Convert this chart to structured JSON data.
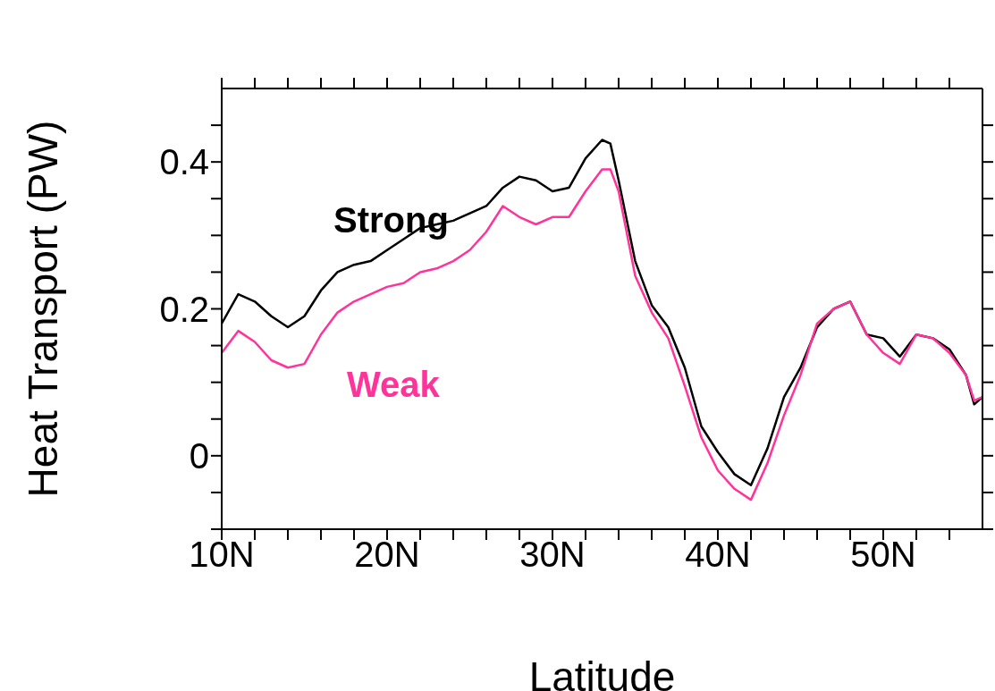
{
  "chart_data": {
    "type": "line",
    "xlabel": "Latitude",
    "ylabel": "Heat Transport (PW)",
    "xlim": [
      10,
      56
    ],
    "xticks": [
      {
        "value": 10,
        "label": "10N"
      },
      {
        "value": 12,
        "label": null
      },
      {
        "value": 14,
        "label": null
      },
      {
        "value": 16,
        "label": null
      },
      {
        "value": 18,
        "label": null
      },
      {
        "value": 20,
        "label": "20N"
      },
      {
        "value": 22,
        "label": null
      },
      {
        "value": 24,
        "label": null
      },
      {
        "value": 26,
        "label": null
      },
      {
        "value": 28,
        "label": null
      },
      {
        "value": 30,
        "label": "30N"
      },
      {
        "value": 32,
        "label": null
      },
      {
        "value": 34,
        "label": null
      },
      {
        "value": 36,
        "label": null
      },
      {
        "value": 38,
        "label": null
      },
      {
        "value": 40,
        "label": "40N"
      },
      {
        "value": 42,
        "label": null
      },
      {
        "value": 44,
        "label": null
      },
      {
        "value": 46,
        "label": null
      },
      {
        "value": 48,
        "label": null
      },
      {
        "value": 50,
        "label": "50N"
      },
      {
        "value": 52,
        "label": null
      },
      {
        "value": 54,
        "label": null
      }
    ],
    "ylim": [
      -0.1,
      0.5
    ],
    "yticks": [
      {
        "value": -0.1,
        "label": null
      },
      {
        "value": -0.05,
        "label": null
      },
      {
        "value": 0,
        "label": "0"
      },
      {
        "value": 0.05,
        "label": null
      },
      {
        "value": 0.1,
        "label": null
      },
      {
        "value": 0.15,
        "label": null
      },
      {
        "value": 0.2,
        "label": "0.2"
      },
      {
        "value": 0.25,
        "label": null
      },
      {
        "value": 0.3,
        "label": null
      },
      {
        "value": 0.35,
        "label": null
      },
      {
        "value": 0.4,
        "label": "0.4"
      },
      {
        "value": 0.45,
        "label": null
      }
    ],
    "x": [
      10,
      11,
      12,
      13,
      14,
      15,
      16,
      17,
      18,
      19,
      20,
      21,
      22,
      23,
      24,
      25,
      26,
      27,
      28,
      29,
      30,
      31,
      32,
      33,
      33.5,
      34,
      35,
      36,
      37,
      38,
      39,
      40,
      41,
      42,
      43,
      44,
      45,
      46,
      47,
      48,
      49,
      50,
      51,
      52,
      53,
      54,
      55,
      55.5,
      56
    ],
    "marker": "none",
    "line_style": "solid",
    "series": [
      {
        "name": "Strong",
        "color": "#000000",
        "values": [
          0.18,
          0.22,
          0.21,
          0.19,
          0.175,
          0.19,
          0.225,
          0.25,
          0.26,
          0.265,
          0.28,
          0.295,
          0.31,
          0.315,
          0.32,
          0.33,
          0.34,
          0.365,
          0.38,
          0.375,
          0.36,
          0.365,
          0.405,
          0.43,
          0.425,
          0.375,
          0.265,
          0.205,
          0.175,
          0.12,
          0.04,
          0.005,
          -0.025,
          -0.04,
          0.01,
          0.08,
          0.12,
          0.175,
          0.2,
          0.21,
          0.165,
          0.16,
          0.135,
          0.165,
          0.16,
          0.145,
          0.11,
          0.07,
          0.08
        ]
      },
      {
        "name": "Weak",
        "color": "#ff3399",
        "values": [
          0.14,
          0.17,
          0.155,
          0.13,
          0.12,
          0.125,
          0.165,
          0.195,
          0.21,
          0.22,
          0.23,
          0.235,
          0.25,
          0.255,
          0.265,
          0.28,
          0.305,
          0.34,
          0.325,
          0.315,
          0.325,
          0.325,
          0.36,
          0.39,
          0.39,
          0.36,
          0.245,
          0.195,
          0.16,
          0.095,
          0.025,
          -0.02,
          -0.045,
          -0.06,
          -0.01,
          0.055,
          0.11,
          0.18,
          0.2,
          0.21,
          0.165,
          0.14,
          0.125,
          0.165,
          0.16,
          0.14,
          0.11,
          0.075,
          0.08
        ]
      }
    ]
  }
}
